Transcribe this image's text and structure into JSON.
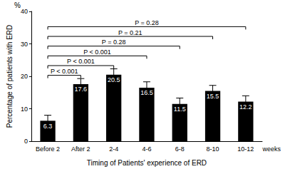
{
  "chart_data": {
    "type": "bar",
    "x_label": "Timing of Patients' experience of ERD",
    "x_unit": "weeks",
    "y_label": "Percentage of patients with ERD",
    "y_unit": "%",
    "categories": [
      "Before 2",
      "After 2",
      "2-4",
      "4-6",
      "6-8",
      "8-10",
      "10-12"
    ],
    "values": [
      6.3,
      17.6,
      20.5,
      16.5,
      11.5,
      15.5,
      12.2
    ],
    "errors": [
      1.7,
      1.7,
      1.8,
      1.8,
      1.8,
      1.7,
      1.8
    ],
    "color": "#000000",
    "ylim": [
      0,
      40
    ],
    "yticks": [
      0,
      10,
      20,
      30,
      40
    ],
    "grid": false,
    "data_labels": true,
    "comparisons": [
      {
        "from": "Before 2",
        "to": "After 2",
        "label": "P < 0.001"
      },
      {
        "from": "Before 2",
        "to": "2-4",
        "label": "P < 0.001"
      },
      {
        "from": "Before 2",
        "to": "4-6",
        "label": "P < 0.001"
      },
      {
        "from": "Before 2",
        "to": "6-8",
        "label": "P = 0.28"
      },
      {
        "from": "Before 2",
        "to": "8-10",
        "label": "P = 0.21"
      },
      {
        "from": "Before 2",
        "to": "10-12",
        "label": "P = 0.28"
      }
    ]
  }
}
